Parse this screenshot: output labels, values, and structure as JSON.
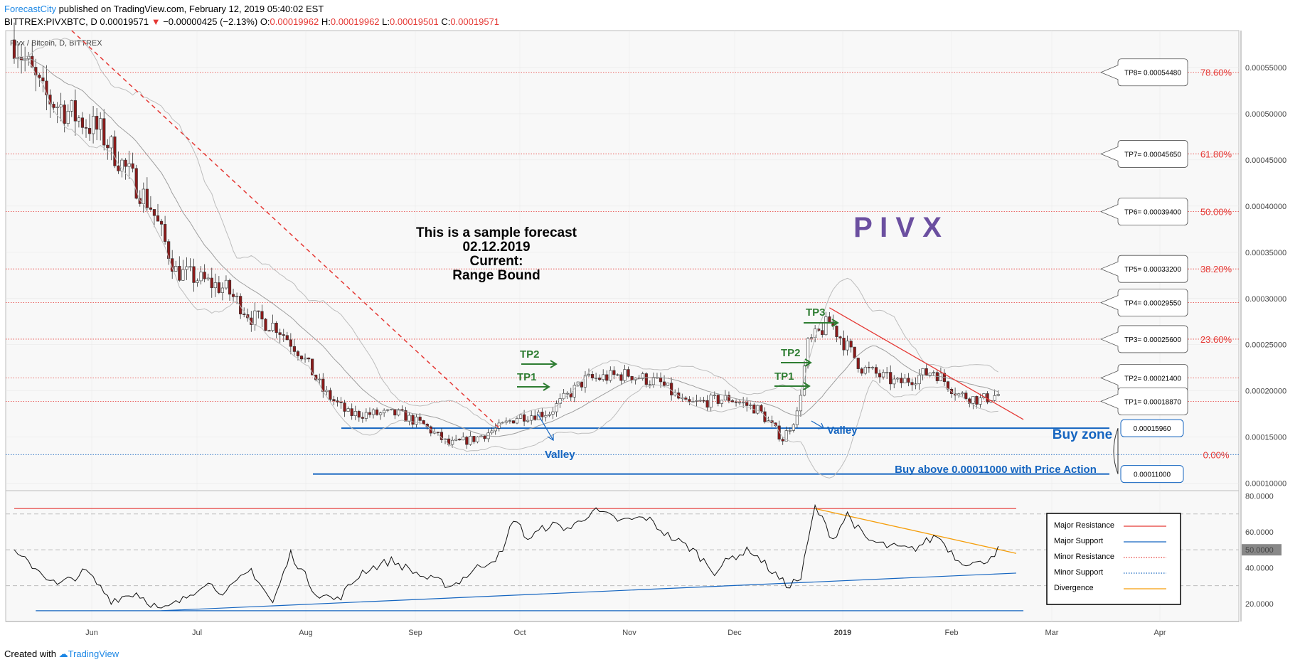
{
  "header": {
    "brand": "ForecastCity",
    "published": " published on TradingView.com, February 12, 2019 05:40:02 EST",
    "symbol_line": "BITTREX:PIVXBTC, D",
    "price": "0.00019571",
    "change_arrow": "▼",
    "change": "−0.00000425 (−2.13%)",
    "o_label": "O:",
    "o": "0.00019962",
    "h_label": "H:",
    "h": "0.00019962",
    "l_label": "L:",
    "l": "0.00019501",
    "c_label": "C:",
    "c": "0.00019571"
  },
  "footer": {
    "created": "Created with",
    "brand": "TradingView"
  },
  "colors": {
    "up": "#ffffff",
    "down": "#8b1a1a",
    "grid": "#e6e6e6",
    "resistance": "#e53935",
    "support": "#1565c0",
    "divergence": "#f59e0b",
    "tp_green": "#2e7d32",
    "pivx_purple": "#6b4fa0"
  },
  "chart_data": [
    {
      "type": "candlestick",
      "title": "Pivx / Bitcoin, D, BITTREX",
      "x_ticks": [
        "Jun",
        "Jul",
        "Aug",
        "Sep",
        "Oct",
        "Nov",
        "Dec",
        "2019",
        "Feb",
        "Mar",
        "Apr"
      ],
      "y_ticks": [
        "0.00055000",
        "0.00050000",
        "0.00045000",
        "0.00040000",
        "0.00035000",
        "0.00030000",
        "0.00025000",
        "0.00020000",
        "0.00015000",
        "0.00010000"
      ],
      "ylim": [
        9.2e-05,
        0.00059
      ],
      "close_anchors": [
        {
          "date": "2018-05-14",
          "close": 0.00058
        },
        {
          "date": "2018-05-22",
          "close": 0.00052
        },
        {
          "date": "2018-05-30",
          "close": 0.0005
        },
        {
          "date": "2018-06-07",
          "close": 0.00048
        },
        {
          "date": "2018-06-14",
          "close": 0.00044
        },
        {
          "date": "2018-06-21",
          "close": 0.0004
        },
        {
          "date": "2018-06-28",
          "close": 0.00033
        },
        {
          "date": "2018-07-05",
          "close": 0.00032
        },
        {
          "date": "2018-07-12",
          "close": 0.00031
        },
        {
          "date": "2018-07-19",
          "close": 0.00028
        },
        {
          "date": "2018-07-26",
          "close": 0.00027
        },
        {
          "date": "2018-08-02",
          "close": 0.00024
        },
        {
          "date": "2018-08-08",
          "close": 0.0002
        },
        {
          "date": "2018-08-15",
          "close": 0.000175
        },
        {
          "date": "2018-08-29",
          "close": 0.000175
        },
        {
          "date": "2018-09-05",
          "close": 0.000163
        },
        {
          "date": "2018-09-12",
          "close": 0.000142
        },
        {
          "date": "2018-09-19",
          "close": 0.000148
        },
        {
          "date": "2018-09-26",
          "close": 0.00016
        },
        {
          "date": "2018-10-01",
          "close": 0.000172
        },
        {
          "date": "2018-10-10",
          "close": 0.000177
        },
        {
          "date": "2018-10-20",
          "close": 0.000212
        },
        {
          "date": "2018-11-01",
          "close": 0.000218
        },
        {
          "date": "2018-11-10",
          "close": 0.000208
        },
        {
          "date": "2018-11-17",
          "close": 0.000185
        },
        {
          "date": "2018-11-29",
          "close": 0.000192
        },
        {
          "date": "2018-12-07",
          "close": 0.00018
        },
        {
          "date": "2018-12-14",
          "close": 0.000148
        },
        {
          "date": "2018-12-18",
          "close": 0.000175
        },
        {
          "date": "2018-12-21",
          "close": 0.00025
        },
        {
          "date": "2018-12-27",
          "close": 0.000275
        },
        {
          "date": "2019-01-05",
          "close": 0.000225
        },
        {
          "date": "2019-01-15",
          "close": 0.000208
        },
        {
          "date": "2019-01-25",
          "close": 0.000222
        },
        {
          "date": "2019-02-01",
          "close": 0.000196
        },
        {
          "date": "2019-02-07",
          "close": 0.00019
        },
        {
          "date": "2019-02-12",
          "close": 0.000196
        }
      ],
      "take_profit": [
        {
          "label": "TP8= 0.00054480",
          "price": 0.0005448,
          "fib": "78.60%"
        },
        {
          "label": "TP7= 0.00045650",
          "price": 0.0004565,
          "fib": "61.80%"
        },
        {
          "label": "TP6= 0.00039400",
          "price": 0.000394,
          "fib": "50.00%"
        },
        {
          "label": "TP5= 0.00033200",
          "price": 0.000332,
          "fib": "38.20%"
        },
        {
          "label": "TP4= 0.00029550",
          "price": 0.0002955,
          "fib": ""
        },
        {
          "label": "TP3= 0.00025600",
          "price": 0.000256,
          "fib": "23.60%"
        },
        {
          "label": "TP2= 0.00021400",
          "price": 0.000214,
          "fib": ""
        },
        {
          "label": "TP1= 0.00018870",
          "price": 0.0001887,
          "fib": ""
        }
      ],
      "fib_zero": {
        "label": "0.00%",
        "price": 0.000131
      },
      "support_levels": [
        {
          "label": "0.00015960",
          "price": 0.0001596
        },
        {
          "label": "0.00011000",
          "price": 0.00011
        }
      ],
      "descending_resistance": [
        {
          "date": "2018-12-27",
          "price": 0.00029
        },
        {
          "date": "2019-02-19",
          "price": 0.000169
        }
      ],
      "downtrend": [
        {
          "date": "2018-05-30",
          "price": 0.00059
        },
        {
          "date": "2018-09-26",
          "price": 0.00016
        }
      ],
      "annotations": {
        "forecast_lines": [
          "This is a sample forecast",
          "02.12.2019",
          "Current:",
          "Range Bound"
        ],
        "asset_name": "P I V X",
        "tp1": "TP1",
        "tp2": "TP2",
        "tp3": "TP3",
        "valley": "Valley",
        "buy_zone": "Buy zone",
        "buy_above": "Buy above 0.00011000 with Price Action"
      }
    },
    {
      "type": "line",
      "y_ticks": [
        "80.0000",
        "60.0000",
        "40.0000",
        "20.0000"
      ],
      "ylim": [
        10,
        83
      ],
      "current_value": "50.0000",
      "anchors": [
        {
          "date": "2018-05-14",
          "value": 48
        },
        {
          "date": "2018-05-20",
          "value": 40
        },
        {
          "date": "2018-05-26",
          "value": 30
        },
        {
          "date": "2018-06-03",
          "value": 38
        },
        {
          "date": "2018-06-10",
          "value": 22
        },
        {
          "date": "2018-06-17",
          "value": 26
        },
        {
          "date": "2018-06-24",
          "value": 16
        },
        {
          "date": "2018-06-30",
          "value": 22
        },
        {
          "date": "2018-07-06",
          "value": 32
        },
        {
          "date": "2018-07-12",
          "value": 26
        },
        {
          "date": "2018-07-19",
          "value": 39
        },
        {
          "date": "2018-07-25",
          "value": 20
        },
        {
          "date": "2018-07-30",
          "value": 48
        },
        {
          "date": "2018-08-06",
          "value": 26
        },
        {
          "date": "2018-08-12",
          "value": 22
        },
        {
          "date": "2018-08-19",
          "value": 38
        },
        {
          "date": "2018-08-27",
          "value": 44
        },
        {
          "date": "2018-09-06",
          "value": 34
        },
        {
          "date": "2018-09-13",
          "value": 30
        },
        {
          "date": "2018-09-20",
          "value": 40
        },
        {
          "date": "2018-09-27",
          "value": 48
        },
        {
          "date": "2018-09-30",
          "value": 68
        },
        {
          "date": "2018-10-04",
          "value": 56
        },
        {
          "date": "2018-10-10",
          "value": 64
        },
        {
          "date": "2018-10-16",
          "value": 62
        },
        {
          "date": "2018-10-22",
          "value": 72
        },
        {
          "date": "2018-10-30",
          "value": 66
        },
        {
          "date": "2018-11-06",
          "value": 68
        },
        {
          "date": "2018-11-12",
          "value": 58
        },
        {
          "date": "2018-11-19",
          "value": 50
        },
        {
          "date": "2018-11-25",
          "value": 38
        },
        {
          "date": "2018-11-30",
          "value": 46
        },
        {
          "date": "2018-12-05",
          "value": 50
        },
        {
          "date": "2018-12-10",
          "value": 40
        },
        {
          "date": "2018-12-15",
          "value": 30
        },
        {
          "date": "2018-12-19",
          "value": 34
        },
        {
          "date": "2018-12-23",
          "value": 74
        },
        {
          "date": "2018-12-28",
          "value": 56
        },
        {
          "date": "2019-01-01",
          "value": 70
        },
        {
          "date": "2019-01-06",
          "value": 56
        },
        {
          "date": "2019-01-12",
          "value": 52
        },
        {
          "date": "2019-01-19",
          "value": 50
        },
        {
          "date": "2019-01-26",
          "value": 58
        },
        {
          "date": "2019-02-01",
          "value": 44
        },
        {
          "date": "2019-02-07",
          "value": 42
        },
        {
          "date": "2019-02-12",
          "value": 50
        }
      ],
      "major_resistance": [
        {
          "date": "2018-05-14",
          "value": 73
        },
        {
          "date": "2019-02-17",
          "value": 73
        }
      ],
      "major_support": [
        {
          "date": "2018-05-20",
          "value": 16
        },
        {
          "date": "2019-02-19",
          "value": 16
        }
      ],
      "rising_support": [
        {
          "date": "2018-06-24",
          "value": 16
        },
        {
          "date": "2019-02-17",
          "value": 37
        }
      ],
      "divergence": [
        {
          "date": "2018-12-23",
          "value": 73
        },
        {
          "date": "2019-02-17",
          "value": 48
        }
      ],
      "legend": [
        "Major Resistance",
        "Major Support",
        "Minor Resistance",
        "Minor Support",
        "Divergence"
      ]
    }
  ]
}
